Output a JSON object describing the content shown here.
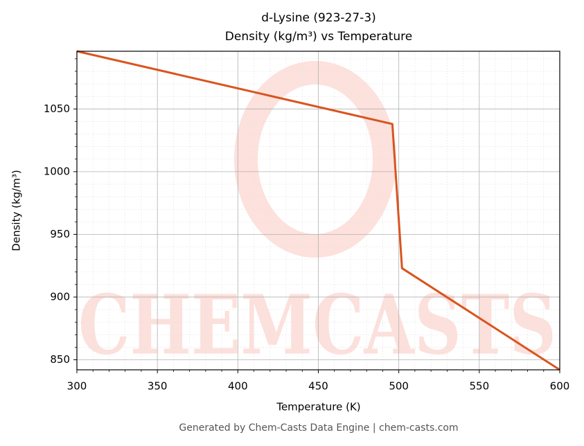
{
  "chart_data": {
    "type": "line",
    "title": "d-Lysine (923-27-3)",
    "subtitle": "Density (kg/m³) vs Temperature",
    "x_label": "Temperature (K)",
    "y_label": "Density (kg/m³)",
    "footer": "Generated by Chem-Casts Data Engine | chem-casts.com",
    "x": [
      300,
      496,
      502,
      600
    ],
    "values": [
      1096,
      1038,
      923,
      842
    ],
    "color": "#d9541e",
    "xlim": [
      300,
      600
    ],
    "ylim": [
      842,
      1096
    ],
    "xticks": [
      300,
      350,
      400,
      450,
      500,
      550,
      600
    ],
    "yticks": [
      850,
      900,
      950,
      1000,
      1050
    ],
    "grid": true
  }
}
